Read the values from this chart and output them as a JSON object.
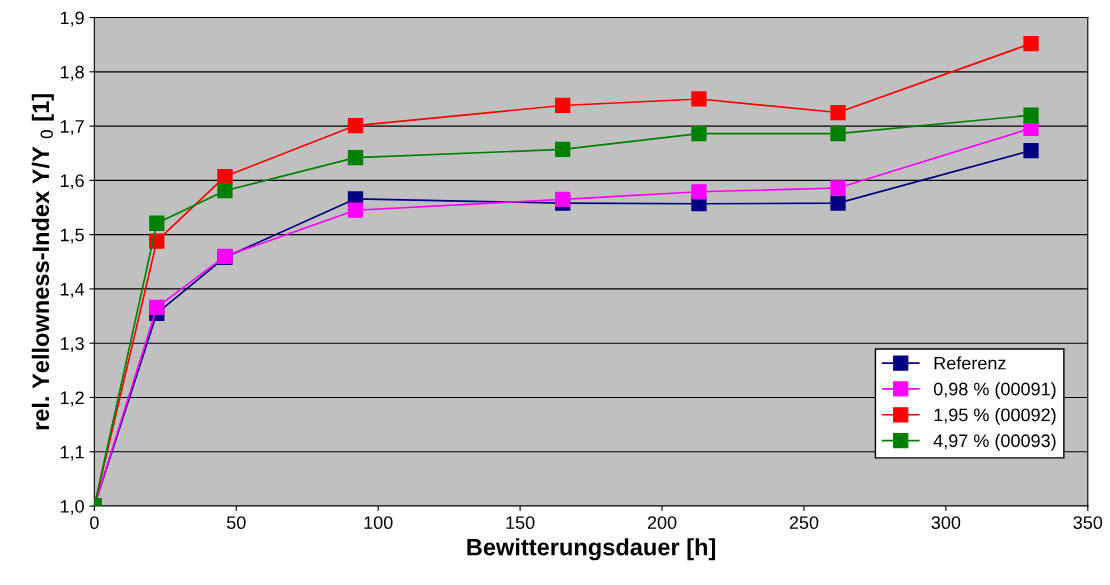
{
  "chart_data": {
    "type": "line",
    "xlabel": "Bewitterungsdauer [h]",
    "ylabel": "rel. Yellowness-Index Y/Y $_{0}$ [1]",
    "x": [
      0,
      22,
      46,
      92,
      165,
      213,
      262,
      330
    ],
    "series": [
      {
        "name": "Referenz",
        "color": "#000080",
        "values": [
          1.0,
          1.355,
          1.458,
          1.566,
          1.558,
          1.557,
          1.558,
          1.655
        ]
      },
      {
        "name": "0,98 % (00091)",
        "color": "#ff00ff",
        "values": [
          1.0,
          1.366,
          1.46,
          1.545,
          1.565,
          1.579,
          1.586,
          1.696
        ]
      },
      {
        "name": "1,95 % (00092)",
        "color": "#ff0000",
        "values": [
          1.0,
          1.488,
          1.607,
          1.701,
          1.738,
          1.75,
          1.725,
          1.852
        ]
      },
      {
        "name": "4,97 % (00093)",
        "color": "#008000",
        "values": [
          1.0,
          1.521,
          1.581,
          1.642,
          1.657,
          1.686,
          1.686,
          1.72
        ]
      }
    ],
    "xlim": [
      0,
      350
    ],
    "xticks": [
      0,
      50,
      100,
      150,
      200,
      250,
      300,
      350
    ],
    "ylim": [
      1.0,
      1.9
    ],
    "yticks": [
      {
        "value": 1.0,
        "label": "1,0"
      },
      {
        "value": 1.1,
        "label": "1,1"
      },
      {
        "value": 1.2,
        "label": "1,2"
      },
      {
        "value": 1.3,
        "label": "1,3"
      },
      {
        "value": 1.4,
        "label": "1,4"
      },
      {
        "value": 1.5,
        "label": "1,5"
      },
      {
        "value": 1.6,
        "label": "1,6"
      },
      {
        "value": 1.7,
        "label": "1,7"
      },
      {
        "value": 1.8,
        "label": "1,8"
      },
      {
        "value": 1.9,
        "label": "1,9"
      }
    ],
    "grid": "y",
    "legend": "bottom right",
    "marker": "square",
    "line_style": "solid"
  }
}
